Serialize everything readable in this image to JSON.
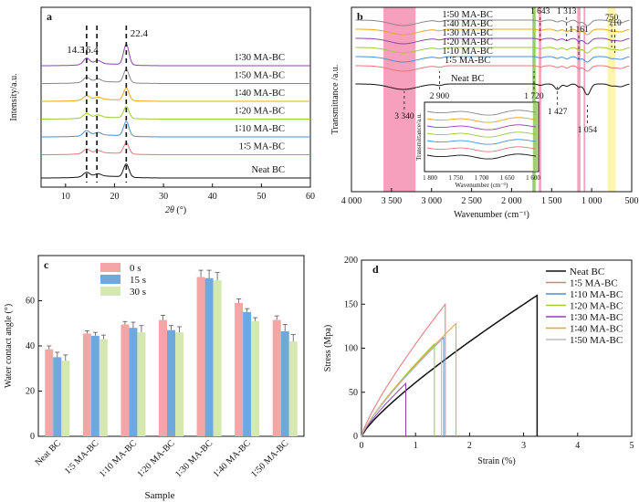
{
  "chart_data": [
    {
      "panel": "a",
      "type": "line",
      "xlabel_italic": "2θ",
      "xlabel_unit": " (°)",
      "ylabel": "Intensity/a.u.",
      "xlim": [
        5,
        60
      ],
      "xticks": [
        10,
        20,
        30,
        40,
        50,
        60
      ],
      "peak_annotations": [
        {
          "x": 14.3,
          "label": "14.3"
        },
        {
          "x": 16.4,
          "label": "16.4"
        },
        {
          "x": 22.4,
          "label": "22.4"
        }
      ],
      "series": [
        {
          "name": "1∶30 MA-BC",
          "color": "#8e44ad",
          "peak_heights": [
            0.5,
            0.35,
            1.4
          ]
        },
        {
          "name": "1∶50 MA-BC",
          "color": "#888888",
          "peak_heights": [
            0.4,
            0.28,
            0.9
          ]
        },
        {
          "name": "1∶40 MA-BC",
          "color": "#e6a817",
          "peak_heights": [
            0.35,
            0.25,
            0.85
          ]
        },
        {
          "name": "1∶20 MA-BC",
          "color": "#9acd32",
          "peak_heights": [
            0.35,
            0.25,
            0.8
          ]
        },
        {
          "name": "1∶10 MA-BC",
          "color": "#4a90d9",
          "peak_heights": [
            0.4,
            0.28,
            1.0
          ]
        },
        {
          "name": "1∶5 MA-BC",
          "color": "#e8767a",
          "peak_heights": [
            0.35,
            0.25,
            0.75
          ]
        },
        {
          "name": "Neat BC",
          "color": "#111111",
          "peak_heights": [
            0.35,
            0.25,
            0.9
          ]
        }
      ]
    },
    {
      "panel": "b",
      "type": "line",
      "xlabel": "Wavenumber (cm⁻¹)",
      "ylabel": "Transmittance /a.u.",
      "xlim": [
        4000,
        500
      ],
      "xticks": [
        4000,
        3500,
        3000,
        2500,
        2000,
        1500,
        1000,
        500
      ],
      "xtick_labels": [
        "4 000",
        "3 500",
        "3 000",
        "2 500",
        "2 000",
        "1 500",
        "1 000",
        "500"
      ],
      "series_labels": [
        "1∶50 MA-BC",
        "1∶40 MA-BC",
        "1∶30 MA-BC",
        "1∶20 MA-BC",
        "1∶10 MA-BC",
        "1∶5 MA-BC",
        "Neat BC"
      ],
      "series_colors": [
        "#888888",
        "#e6a817",
        "#8e44ad",
        "#9acd32",
        "#4a90d9",
        "#e8767a",
        "#111111"
      ],
      "annotations": [
        "3 340",
        "2 900",
        "1 720",
        "1 643",
        "1 427",
        "1 313",
        "1 161",
        "1 054",
        "750",
        "710"
      ],
      "highlight_bands": [
        {
          "from": 3600,
          "to": 3200,
          "color": "#f48fb1"
        },
        {
          "from": 1740,
          "to": 1700,
          "color": "#8bc34a"
        },
        {
          "from": 1660,
          "to": 1630,
          "color": "#f48fb1"
        },
        {
          "from": 1180,
          "to": 1140,
          "color": "#f48fb1"
        },
        {
          "from": 1100,
          "to": 1080,
          "color": "#f48fb1"
        },
        {
          "from": 800,
          "to": 700,
          "color": "#fff59d"
        }
      ],
      "inset": {
        "ylabel": "Transmittance/a.u.",
        "xlabel": "Wavenumber (cm⁻¹)",
        "xticks": [
          "1 800",
          "1 750",
          "1 700",
          "1 650",
          "1 600"
        ]
      }
    },
    {
      "panel": "c",
      "type": "bar",
      "xlabel": "Sample",
      "ylabel": "Water contact angle (°)",
      "ylim": [
        0,
        80
      ],
      "yticks": [
        0,
        20,
        40,
        60
      ],
      "categories": [
        "Neat BC",
        "1∶5 MA-BC",
        "1∶10 MA-BC",
        "1∶20 MA-BC",
        "1∶30 MA-BC",
        "1∶40 MA-BC",
        "1∶50 MA-BC"
      ],
      "series": [
        {
          "name": "0 s",
          "color": "#f4a6a6",
          "values": [
            38.5,
            45.5,
            49.5,
            51.5,
            70.5,
            59,
            51.5
          ],
          "errors": [
            1.5,
            1.2,
            1.3,
            2,
            3,
            1.8,
            1.8
          ]
        },
        {
          "name": "15 s",
          "color": "#6fa8dc",
          "values": [
            35,
            44.5,
            48,
            47,
            70,
            55,
            46.5
          ],
          "errors": [
            2.2,
            1.5,
            2.5,
            2,
            3.5,
            1.5,
            3
          ]
        },
        {
          "name": "30 s",
          "color": "#d4e8b0",
          "values": [
            33.5,
            43,
            46,
            46,
            69,
            51,
            42
          ],
          "errors": [
            2.5,
            1.8,
            3,
            2.5,
            3.5,
            1.5,
            3
          ]
        }
      ]
    },
    {
      "panel": "d",
      "type": "line",
      "xlabel": "Strain (%)",
      "ylabel": "Stress (Mpa)",
      "xlim": [
        0,
        5
      ],
      "ylim": [
        0,
        200
      ],
      "xticks": [
        0,
        1,
        2,
        3,
        4,
        5
      ],
      "yticks": [
        0,
        50,
        100,
        150,
        200
      ],
      "series": [
        {
          "name": "Neat BC",
          "color": "#111111",
          "break_strain": 3.25,
          "break_stress": 160
        },
        {
          "name": "1∶5 MA-BC",
          "color": "#e8767a",
          "break_strain": 1.55,
          "break_stress": 150
        },
        {
          "name": "1∶10 MA-BC",
          "color": "#4a90d9",
          "break_strain": 1.52,
          "break_stress": 112
        },
        {
          "name": "1∶20 MA-BC",
          "color": "#9acd32",
          "break_strain": 1.35,
          "break_stress": 105
        },
        {
          "name": "1∶30 MA-BC",
          "color": "#8e44ad",
          "break_strain": 0.82,
          "break_stress": 60
        },
        {
          "name": "1∶40 MA-BC",
          "color": "#e6a817",
          "break_strain": 1.75,
          "break_stress": 128
        },
        {
          "name": "1∶50 MA-BC",
          "color": "#bbbbbb",
          "break_strain": 1.48,
          "break_stress": 110
        }
      ]
    }
  ]
}
